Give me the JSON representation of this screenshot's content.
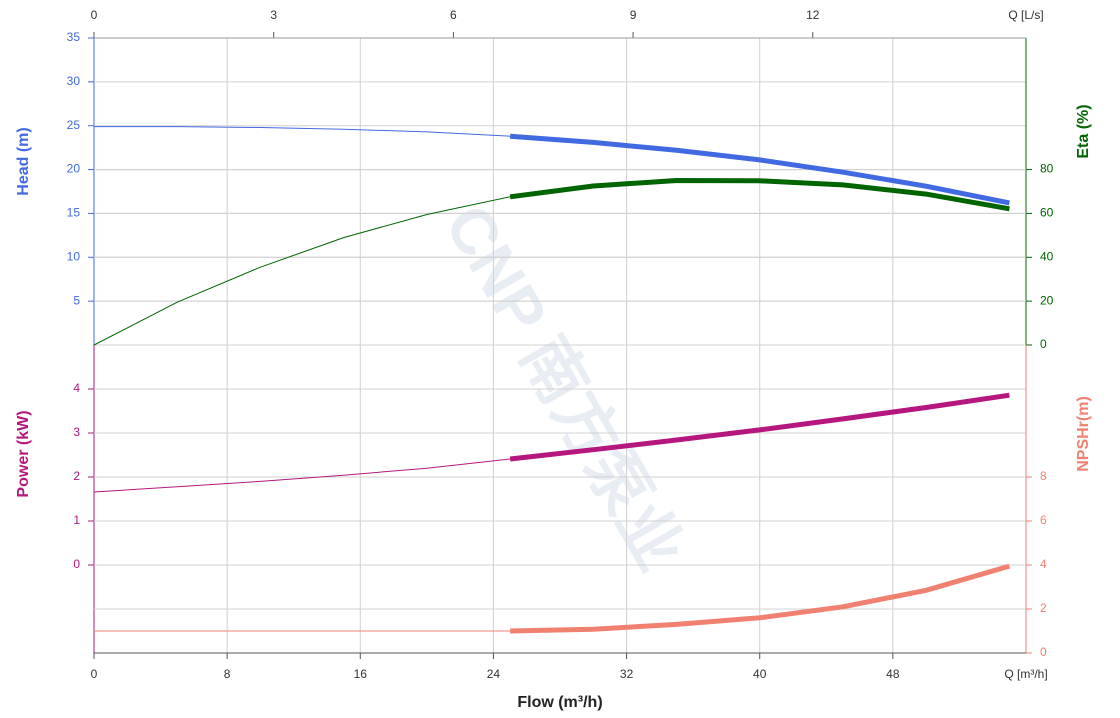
{
  "chart_data": {
    "type": "line",
    "xlabel": "Flow (m³/h)",
    "xunit_label": "Q [m³/h]",
    "x2unit_label": "Q [L/s]",
    "watermark": "CNP 南方泵业",
    "grid": true,
    "xlim": [
      0,
      56
    ],
    "xticks": [
      0,
      8,
      16,
      24,
      32,
      40,
      48
    ],
    "x2lim": [
      0,
      15.56
    ],
    "x2ticks": [
      0,
      3,
      6,
      9,
      12
    ],
    "thick_range": [
      25,
      55
    ],
    "axes": [
      {
        "label": "Head (m)",
        "side": "left",
        "panel": "upper",
        "color": "#4169e1",
        "ylim": [
          0,
          35
        ],
        "yticks": [
          5,
          10,
          15,
          20,
          25,
          30,
          35
        ]
      },
      {
        "label": "Eta (%)",
        "side": "right",
        "panel": "upper",
        "color": "#006400",
        "ylim": [
          0,
          140
        ],
        "yticks": [
          0,
          20,
          40,
          60,
          80
        ]
      },
      {
        "label": "Power (kW)",
        "side": "left",
        "panel": "lower",
        "color": "#b5177e",
        "ylim": [
          -2,
          5
        ],
        "yticks": [
          0,
          1,
          2,
          3,
          4
        ]
      },
      {
        "label": "NPSHr(m)",
        "side": "right",
        "panel": "lower",
        "color": "#f08070",
        "ylim": [
          0,
          14
        ],
        "yticks": [
          0,
          2,
          4,
          6,
          8
        ]
      }
    ],
    "x": [
      0,
      5,
      10,
      15,
      20,
      25,
      30,
      35,
      40,
      45,
      50,
      55
    ],
    "series": [
      {
        "axis": 0,
        "color": "#4169e1",
        "values": [
          24.9,
          24.9,
          24.8,
          24.6,
          24.3,
          23.8,
          23.1,
          22.2,
          21.1,
          19.7,
          18.1,
          16.2
        ]
      },
      {
        "axis": 1,
        "color": "#006400",
        "values": [
          0,
          19.5,
          35.5,
          49,
          59.5,
          67.6,
          72.5,
          75,
          74.9,
          73,
          68.8,
          62.1
        ]
      },
      {
        "axis": 2,
        "color": "#b5177e",
        "values": [
          1.66,
          1.78,
          1.9,
          2.04,
          2.2,
          2.41,
          2.62,
          2.84,
          3.07,
          3.32,
          3.58,
          3.86
        ]
      },
      {
        "axis": 3,
        "color": "#f08070",
        "values": [
          1.0,
          1.0,
          1.0,
          1.0,
          1.0,
          1.0,
          1.08,
          1.3,
          1.6,
          2.1,
          2.85,
          3.95
        ]
      }
    ]
  }
}
